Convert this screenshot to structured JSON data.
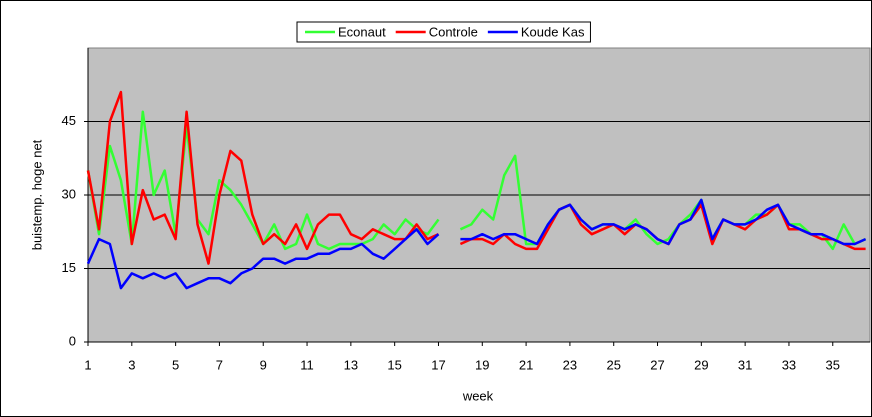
{
  "chart_data": {
    "type": "line",
    "x": [
      1,
      1.5,
      2,
      2.5,
      3,
      3.5,
      4,
      4.5,
      5,
      5.5,
      6,
      6.5,
      7,
      7.5,
      8,
      8.5,
      9,
      9.5,
      10,
      10.5,
      11,
      11.5,
      12,
      12.5,
      13,
      13.5,
      14,
      14.5,
      15,
      15.5,
      16,
      16.5,
      17,
      17.5,
      18,
      18.5,
      19,
      19.5,
      20,
      20.5,
      21,
      21.5,
      22,
      22.5,
      23,
      23.5,
      24,
      24.5,
      25,
      25.5,
      26,
      26.5,
      27,
      27.5,
      28,
      28.5,
      29,
      29.5,
      30,
      30.5,
      31,
      31.5,
      32,
      32.5,
      33,
      33.5,
      34,
      34.5,
      35,
      35.5,
      36,
      36.5
    ],
    "series": [
      {
        "name": "Econaut",
        "color": "#33ff33",
        "values": [
          35,
          22,
          40,
          33,
          20,
          47,
          30,
          35,
          22,
          44,
          25,
          22,
          33,
          31,
          28,
          24,
          20,
          24,
          19,
          20,
          26,
          20,
          19,
          20,
          20,
          20,
          21,
          24,
          22,
          25,
          23,
          22,
          25,
          null,
          23,
          24,
          27,
          25,
          34,
          38,
          20,
          20,
          24,
          27,
          28,
          25,
          23,
          24,
          24,
          23,
          25,
          22,
          20,
          21,
          24,
          26,
          29,
          21,
          25,
          24,
          24,
          26,
          26,
          28,
          24,
          24,
          22,
          22,
          19,
          24,
          20,
          21
        ]
      },
      {
        "name": "Controle",
        "color": "#ff0000",
        "values": [
          35,
          23,
          45,
          51,
          20,
          31,
          25,
          26,
          21,
          47,
          24,
          16,
          30,
          39,
          37,
          26,
          20,
          22,
          20,
          24,
          19,
          24,
          26,
          26,
          22,
          21,
          23,
          22,
          21,
          21,
          24,
          21,
          22,
          null,
          20,
          21,
          21,
          20,
          22,
          20,
          19,
          19,
          23,
          27,
          28,
          24,
          22,
          23,
          24,
          22,
          24,
          23,
          21,
          20,
          24,
          25,
          28,
          20,
          25,
          24,
          23,
          25,
          26,
          28,
          23,
          23,
          22,
          21,
          21,
          20,
          19,
          19
        ]
      },
      {
        "name": "Koude Kas",
        "color": "#0000ff",
        "values": [
          16,
          21,
          20,
          11,
          14,
          13,
          14,
          13,
          14,
          11,
          12,
          13,
          13,
          12,
          14,
          15,
          17,
          17,
          16,
          17,
          17,
          18,
          18,
          19,
          19,
          20,
          18,
          17,
          19,
          21,
          23,
          20,
          22,
          null,
          21,
          21,
          22,
          21,
          22,
          22,
          21,
          20,
          24,
          27,
          28,
          25,
          23,
          24,
          24,
          23,
          24,
          23,
          21,
          20,
          24,
          25,
          29,
          21,
          25,
          24,
          24,
          25,
          27,
          28,
          24,
          23,
          22,
          22,
          21,
          20,
          20,
          21
        ]
      }
    ],
    "xlabel": "week",
    "ylabel": "buistemp. hoge net",
    "xlim": [
      1,
      36.7
    ],
    "ylim": [
      0,
      60
    ],
    "xticks": [
      1,
      3,
      5,
      7,
      9,
      11,
      13,
      15,
      17,
      19,
      21,
      23,
      25,
      27,
      29,
      31,
      33,
      35
    ],
    "yticks": [
      0,
      15,
      30,
      45
    ],
    "grid": true
  }
}
